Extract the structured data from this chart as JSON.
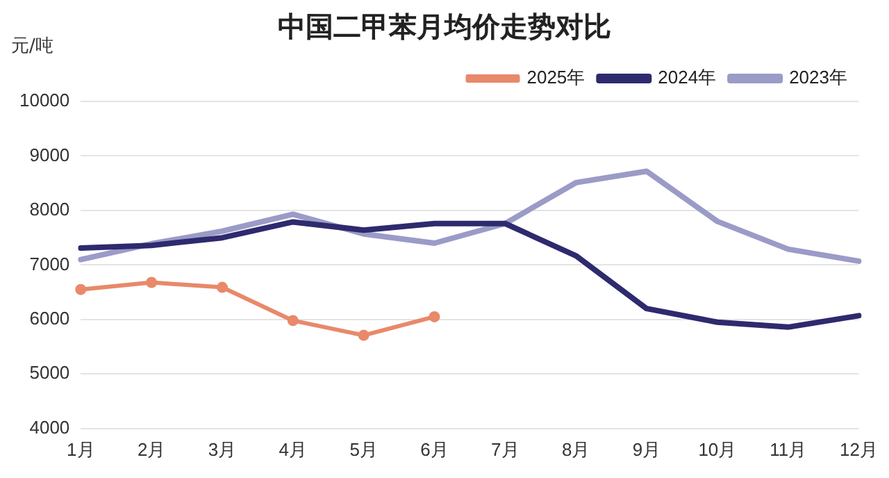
{
  "chart_data": {
    "type": "line",
    "title": "中国二甲苯月均价走势对比",
    "ylabel": "元/吨",
    "categories": [
      "1月",
      "2月",
      "3月",
      "4月",
      "5月",
      "6月",
      "7月",
      "8月",
      "9月",
      "10月",
      "11月",
      "12月"
    ],
    "series": [
      {
        "name": "2025年",
        "color": "#e8896a",
        "marker": "circle",
        "values": [
          6550,
          6680,
          6590,
          5980,
          5710,
          6050,
          null,
          null,
          null,
          null,
          null,
          null
        ]
      },
      {
        "name": "2024年",
        "color": "#2e2a6e",
        "marker": "none",
        "values": [
          7310,
          7360,
          7500,
          7790,
          7640,
          7760,
          7760,
          7170,
          6200,
          5950,
          5860,
          6070
        ]
      },
      {
        "name": "2023年",
        "color": "#9b9bc8",
        "marker": "none",
        "values": [
          7100,
          7390,
          7620,
          7930,
          7570,
          7400,
          7760,
          8510,
          8720,
          7800,
          7290,
          7070
        ]
      }
    ],
    "ylim": [
      4000,
      10000
    ],
    "yticks": [
      4000,
      5000,
      6000,
      7000,
      8000,
      9000,
      10000
    ],
    "grid": "y",
    "legend": "top right"
  }
}
